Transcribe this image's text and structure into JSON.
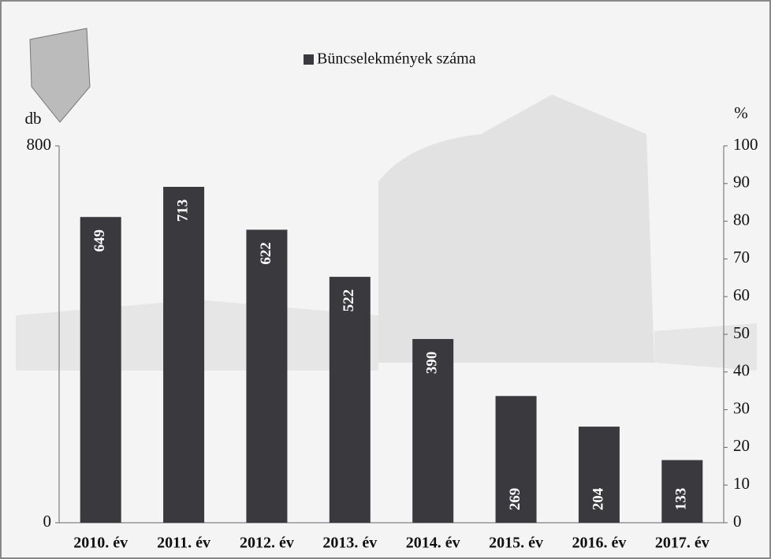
{
  "chart_data": {
    "type": "bar",
    "y_label": "db",
    "y2_label": "%",
    "categories": [
      "2010. év",
      "2011. év",
      "2012. év",
      "2013. év",
      "2014. év",
      "2015. év",
      "2016. év",
      "2017. év"
    ],
    "series": [
      {
        "name": "Büncselekmények száma",
        "color": "#3a3a3e",
        "values": [
          649,
          713,
          622,
          522,
          390,
          269,
          204,
          133
        ]
      }
    ],
    "ylim": [
      0,
      800
    ],
    "yticks": [
      0,
      800
    ],
    "y2lim": [
      0,
      100
    ],
    "y2ticks": [
      0,
      10,
      20,
      30,
      40,
      50,
      60,
      70,
      80,
      90,
      100
    ],
    "legend": "top"
  }
}
